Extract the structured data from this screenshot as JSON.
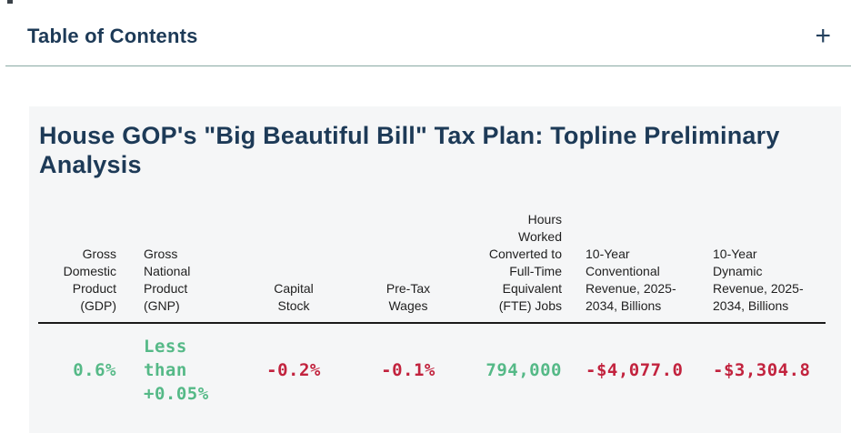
{
  "toc": {
    "title": "Table of Contents",
    "expand_icon": "+"
  },
  "article": {
    "title": "House GOP's \"Big Beautiful Bill\" Tax Plan: Topline Preliminary Analysis"
  },
  "table": {
    "columns": [
      {
        "header": "Gross Domestic Product (GDP)",
        "value": "0.6%",
        "tone": "positive"
      },
      {
        "header": "Gross National Product (GNP)",
        "value": "Less than +0.05%",
        "tone": "positive"
      },
      {
        "header": "Capital Stock",
        "value": "-0.2%",
        "tone": "negative"
      },
      {
        "header": "Pre-Tax Wages",
        "value": "-0.1%",
        "tone": "negative"
      },
      {
        "header": "Hours Worked Converted to Full-Time Equivalent (FTE) Jobs",
        "value": "794,000",
        "tone": "positive"
      },
      {
        "header": "10-Year Conventional Revenue, 2025-2034, Billions",
        "value": "-$4,077.0",
        "tone": "negative"
      },
      {
        "header": "10-Year Dynamic Revenue, 2025-2034, Billions",
        "value": "-$3,304.8",
        "tone": "negative"
      }
    ]
  },
  "colors": {
    "positive": "#55b987",
    "negative": "#c2233e",
    "heading": "#1d3a57",
    "divider": "#8aaaa4",
    "card_background": "#f5f6f7",
    "header_rule": "#1a1a1a"
  },
  "chart_data": {
    "type": "table",
    "title": "House GOP's \"Big Beautiful Bill\" Tax Plan: Topline Preliminary Analysis",
    "columns": [
      "Gross Domestic Product (GDP)",
      "Gross National Product (GNP)",
      "Capital Stock",
      "Pre-Tax Wages",
      "Hours Worked Converted to Full-Time Equivalent (FTE) Jobs",
      "10-Year Conventional Revenue, 2025-2034, Billions",
      "10-Year Dynamic Revenue, 2025-2034, Billions"
    ],
    "rows": [
      [
        "0.6%",
        "Less than +0.05%",
        "-0.2%",
        "-0.1%",
        "794,000",
        "-$4,077.0",
        "-$3,304.8"
      ]
    ],
    "value_sentiment": [
      "positive",
      "positive",
      "negative",
      "negative",
      "positive",
      "negative",
      "negative"
    ]
  }
}
